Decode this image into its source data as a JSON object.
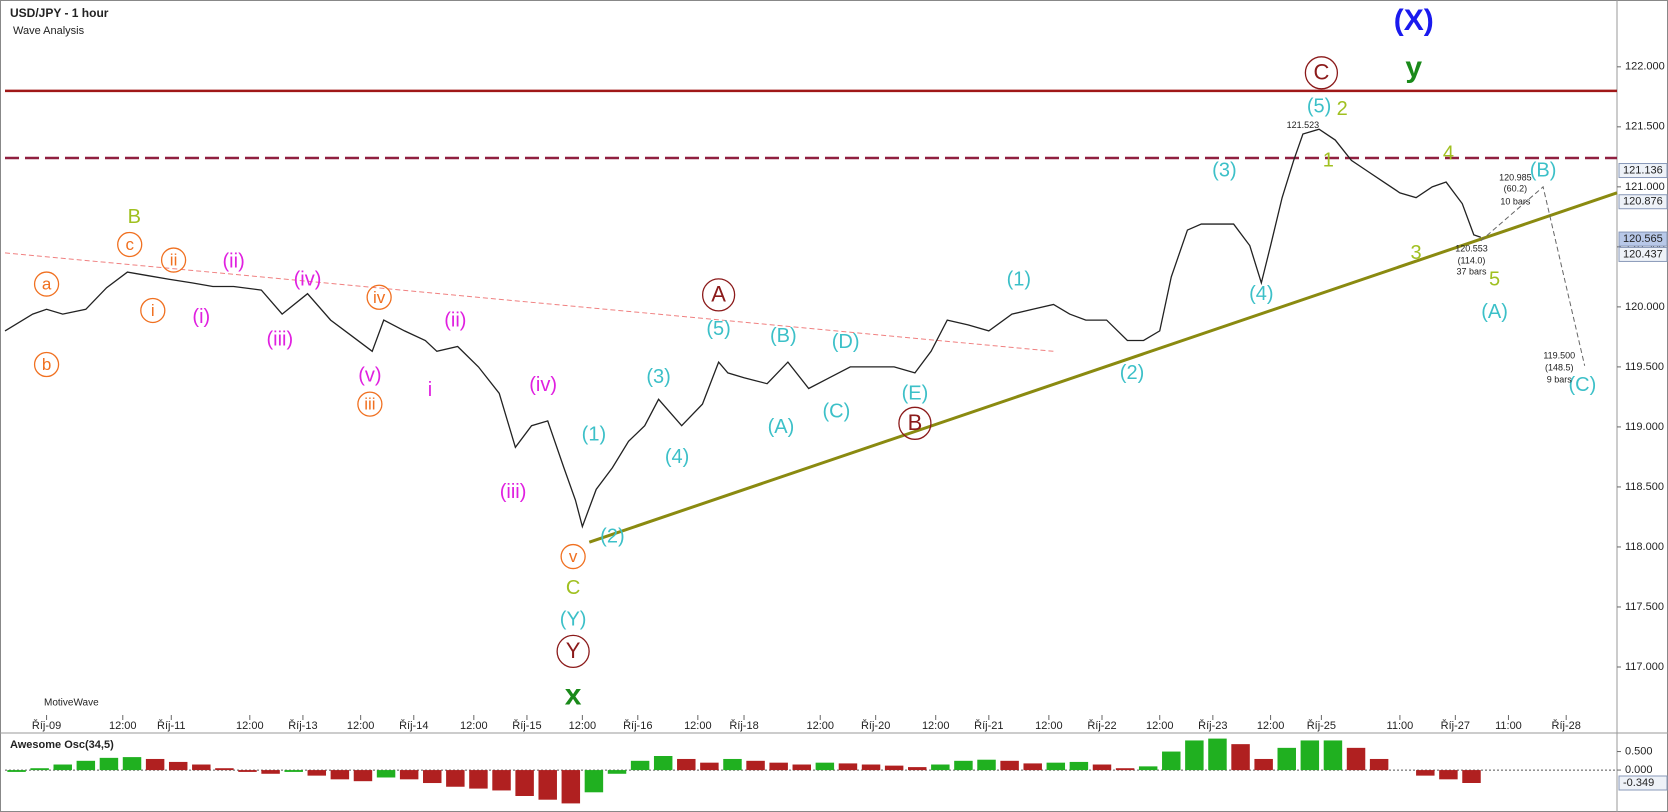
{
  "chart_data": [
    {
      "type": "line",
      "title": "USD/JPY - 1 hour",
      "subtitle": "Wave Analysis",
      "footer": "MotiveWave",
      "xlim": [
        0,
        698
      ],
      "ylim": [
        116.6,
        122.54
      ],
      "xticks": [
        {
          "value": 18,
          "label": "Říj-09"
        },
        {
          "value": 51,
          "label": "12:00"
        },
        {
          "value": 72,
          "label": "Říj-11"
        },
        {
          "value": 106,
          "label": "12:00"
        },
        {
          "value": 129,
          "label": "Říj-13"
        },
        {
          "value": 154,
          "label": "12:00"
        },
        {
          "value": 177,
          "label": "Říj-14"
        },
        {
          "value": 203,
          "label": "12:00"
        },
        {
          "value": 226,
          "label": "Říj-15"
        },
        {
          "value": 250,
          "label": "12:00"
        },
        {
          "value": 274,
          "label": "Říj-16"
        },
        {
          "value": 300,
          "label": "12:00"
        },
        {
          "value": 320,
          "label": "Říj-18"
        },
        {
          "value": 353,
          "label": "12:00"
        },
        {
          "value": 377,
          "label": "Říj-20"
        },
        {
          "value": 403,
          "label": "12:00"
        },
        {
          "value": 426,
          "label": "Říj-21"
        },
        {
          "value": 452,
          "label": "12:00"
        },
        {
          "value": 475,
          "label": "Říj-22"
        },
        {
          "value": 500,
          "label": "12:00"
        },
        {
          "value": 523,
          "label": "Říj-23"
        },
        {
          "value": 548,
          "label": "12:00"
        },
        {
          "value": 570,
          "label": "Říj-25"
        },
        {
          "value": 604,
          "label": "11:00"
        },
        {
          "value": 628,
          "label": "Říj-27"
        },
        {
          "value": 651,
          "label": "11:00"
        },
        {
          "value": 676,
          "label": "Říj-28"
        }
      ],
      "yticks": [
        {
          "value": 117,
          "label": "117.000"
        },
        {
          "value": 117.5,
          "label": "117.500"
        },
        {
          "value": 118,
          "label": "118.000"
        },
        {
          "value": 118.5,
          "label": "118.500"
        },
        {
          "value": 119,
          "label": "119.000"
        },
        {
          "value": 119.5,
          "label": "119.500"
        },
        {
          "value": 120,
          "label": "120.000"
        },
        {
          "value": 120.5,
          "label": "120.500"
        },
        {
          "value": 121,
          "label": "121.000"
        },
        {
          "value": 121.5,
          "label": "121.500"
        },
        {
          "value": 122,
          "label": "122.000"
        }
      ],
      "price_tags": [
        121.136,
        120.876,
        120.565,
        120.437
      ],
      "series": [
        {
          "name": "USD/JPY",
          "color": "#222222",
          "x": [
            0,
            12,
            18,
            25,
            35,
            44,
            53,
            62,
            71,
            81,
            90,
            99,
            111,
            120,
            131,
            141,
            150,
            159,
            164,
            173,
            182,
            187,
            196,
            205,
            214,
            221,
            228,
            235,
            242,
            247,
            250,
            256,
            263,
            270,
            277,
            283,
            293,
            302,
            309,
            313,
            320,
            330,
            339,
            348,
            357,
            366,
            376,
            385,
            394,
            401,
            408,
            417,
            426,
            436,
            445,
            454,
            461,
            468,
            477,
            486,
            493,
            500,
            505,
            512,
            518,
            525,
            532,
            539,
            544,
            548,
            553,
            558,
            562,
            569,
            576,
            583,
            590,
            597,
            604,
            611,
            618,
            624,
            631,
            636,
            639
          ],
          "values": [
            119.8,
            119.94,
            119.98,
            119.94,
            119.98,
            120.16,
            120.29,
            120.26,
            120.23,
            120.2,
            120.17,
            120.17,
            120.14,
            119.94,
            120.11,
            119.89,
            119.76,
            119.63,
            119.89,
            119.8,
            119.72,
            119.63,
            119.67,
            119.5,
            119.28,
            118.83,
            119.01,
            119.05,
            118.66,
            118.39,
            118.17,
            118.48,
            118.66,
            118.88,
            119.01,
            119.23,
            119.01,
            119.19,
            119.54,
            119.45,
            119.41,
            119.36,
            119.54,
            119.32,
            119.41,
            119.5,
            119.5,
            119.5,
            119.45,
            119.63,
            119.89,
            119.85,
            119.8,
            119.94,
            119.98,
            120.02,
            119.94,
            119.89,
            119.89,
            119.72,
            119.72,
            119.8,
            120.25,
            120.64,
            120.69,
            120.69,
            120.69,
            120.51,
            120.2,
            120.51,
            120.91,
            121.22,
            121.44,
            121.48,
            121.39,
            121.22,
            121.13,
            121.04,
            120.95,
            120.91,
            121.0,
            121.04,
            120.86,
            120.6,
            120.58
          ]
        }
      ],
      "levels": [
        {
          "value": 121.8,
          "color": "#a01818",
          "dashed": false
        },
        {
          "value": 121.24,
          "color": "#902040",
          "dashed": true
        }
      ],
      "trendlines": [
        {
          "x": [
            253,
            698
          ],
          "y": [
            118.04,
            120.95
          ],
          "color": "#8a8a10",
          "dashed": false
        },
        {
          "x": [
            0,
            454
          ],
          "y": [
            120.45,
            119.63
          ],
          "color": "#f08080",
          "dashed": true
        },
        {
          "x": [
            639,
            666,
            684
          ],
          "y": [
            120.55,
            121.0,
            119.51
          ],
          "color": "#666666",
          "dashed": true
        }
      ],
      "annotations": [
        {
          "text": "(X)",
          "x": 610,
          "y": 122.38,
          "color": "#1a1aee",
          "style": "big"
        },
        {
          "text": "y",
          "x": 610,
          "y": 121.99,
          "color": "#1a8a1a",
          "style": "big"
        },
        {
          "text": "C",
          "x": 570,
          "y": 121.95,
          "color": "#8b1a1a",
          "style": "circled"
        },
        {
          "text": "(5)",
          "x": 569,
          "y": 121.67,
          "color": "#3cc0c8",
          "style": "plain"
        },
        {
          "text": "2",
          "x": 579,
          "y": 121.65,
          "color": "#a0c020",
          "style": "plain"
        },
        {
          "text": "1",
          "x": 573,
          "y": 121.22,
          "color": "#a0c020",
          "style": "plain"
        },
        {
          "text": "(3)",
          "x": 528,
          "y": 121.14,
          "color": "#3cc0c8",
          "style": "plain"
        },
        {
          "text": "4",
          "x": 625,
          "y": 121.28,
          "color": "#a0c020",
          "style": "plain"
        },
        {
          "text": "(B)",
          "x": 666,
          "y": 121.14,
          "color": "#3cc0c8",
          "style": "plain"
        },
        {
          "text": "3",
          "x": 611,
          "y": 120.45,
          "color": "#a0c020",
          "style": "plain"
        },
        {
          "text": "(4)",
          "x": 544,
          "y": 120.11,
          "color": "#3cc0c8",
          "style": "plain"
        },
        {
          "text": "5",
          "x": 645,
          "y": 120.23,
          "color": "#a0c020",
          "style": "plain"
        },
        {
          "text": "(A)",
          "x": 645,
          "y": 119.96,
          "color": "#3cc0c8",
          "style": "plain"
        },
        {
          "text": "(C)",
          "x": 683,
          "y": 119.35,
          "color": "#3cc0c8",
          "style": "plain"
        },
        {
          "text": "(1)",
          "x": 439,
          "y": 120.23,
          "color": "#3cc0c8",
          "style": "plain"
        },
        {
          "text": "(2)",
          "x": 488,
          "y": 119.45,
          "color": "#3cc0c8",
          "style": "plain"
        },
        {
          "text": "A",
          "x": 309,
          "y": 120.1,
          "color": "#8b1a1a",
          "style": "circled"
        },
        {
          "text": "(5)",
          "x": 309,
          "y": 119.82,
          "color": "#3cc0c8",
          "style": "plain"
        },
        {
          "text": "(B)",
          "x": 337,
          "y": 119.76,
          "color": "#3cc0c8",
          "style": "plain"
        },
        {
          "text": "(D)",
          "x": 364,
          "y": 119.71,
          "color": "#3cc0c8",
          "style": "plain"
        },
        {
          "text": "(E)",
          "x": 394,
          "y": 119.28,
          "color": "#3cc0c8",
          "style": "plain"
        },
        {
          "text": "B",
          "x": 394,
          "y": 119.03,
          "color": "#8b1a1a",
          "style": "circled"
        },
        {
          "text": "(A)",
          "x": 336,
          "y": 119.0,
          "color": "#3cc0c8",
          "style": "plain"
        },
        {
          "text": "(C)",
          "x": 360,
          "y": 119.13,
          "color": "#3cc0c8",
          "style": "plain"
        },
        {
          "text": "(3)",
          "x": 283,
          "y": 119.42,
          "color": "#3cc0c8",
          "style": "plain"
        },
        {
          "text": "(4)",
          "x": 291,
          "y": 118.75,
          "color": "#3cc0c8",
          "style": "plain"
        },
        {
          "text": "(1)",
          "x": 255,
          "y": 118.94,
          "color": "#3cc0c8",
          "style": "plain"
        },
        {
          "text": "(2)",
          "x": 263,
          "y": 118.09,
          "color": "#3cc0c8",
          "style": "plain"
        },
        {
          "text": "v",
          "x": 246,
          "y": 117.92,
          "color": "#f07020",
          "style": "ring"
        },
        {
          "text": "C",
          "x": 246,
          "y": 117.66,
          "color": "#a0c020",
          "style": "plain"
        },
        {
          "text": "(Y)",
          "x": 246,
          "y": 117.4,
          "color": "#3cc0c8",
          "style": "plain"
        },
        {
          "text": "Y",
          "x": 246,
          "y": 117.13,
          "color": "#8b1a1a",
          "style": "circled"
        },
        {
          "text": "x",
          "x": 246,
          "y": 116.76,
          "color": "#1a8a1a",
          "style": "big"
        },
        {
          "text": "(iv)",
          "x": 233,
          "y": 119.35,
          "color": "#e020e0",
          "style": "plain"
        },
        {
          "text": "(iii)",
          "x": 220,
          "y": 118.46,
          "color": "#e020e0",
          "style": "plain"
        },
        {
          "text": "i",
          "x": 184,
          "y": 119.31,
          "color": "#e020e0",
          "style": "plain"
        },
        {
          "text": "(ii)",
          "x": 195,
          "y": 119.89,
          "color": "#e020e0",
          "style": "plain"
        },
        {
          "text": "(v)",
          "x": 158,
          "y": 119.43,
          "color": "#e020e0",
          "style": "plain"
        },
        {
          "text": "iii",
          "x": 158,
          "y": 119.19,
          "color": "#f07020",
          "style": "ring"
        },
        {
          "text": "iv",
          "x": 162,
          "y": 120.08,
          "color": "#f07020",
          "style": "ring"
        },
        {
          "text": "(iv)",
          "x": 131,
          "y": 120.23,
          "color": "#e020e0",
          "style": "plain"
        },
        {
          "text": "(iii)",
          "x": 119,
          "y": 119.73,
          "color": "#e020e0",
          "style": "plain"
        },
        {
          "text": "(ii)",
          "x": 99,
          "y": 120.38,
          "color": "#e020e0",
          "style": "plain"
        },
        {
          "text": "(i)",
          "x": 85,
          "y": 119.92,
          "color": "#e020e0",
          "style": "plain"
        },
        {
          "text": "ii",
          "x": 73,
          "y": 120.39,
          "color": "#f07020",
          "style": "ring"
        },
        {
          "text": "i",
          "x": 64,
          "y": 119.97,
          "color": "#f07020",
          "style": "ring"
        },
        {
          "text": "c",
          "x": 54,
          "y": 120.52,
          "color": "#f07020",
          "style": "ring"
        },
        {
          "text": "B",
          "x": 56,
          "y": 120.75,
          "color": "#a0c020",
          "style": "plain"
        },
        {
          "text": "a",
          "x": 18,
          "y": 120.19,
          "color": "#f07020",
          "style": "ring"
        },
        {
          "text": "b",
          "x": 18,
          "y": 119.52,
          "color": "#f07020",
          "style": "ring"
        },
        {
          "text": "121.523",
          "x": 562,
          "y": 121.52,
          "color": "#222222",
          "style": "small"
        },
        {
          "text": "120.985",
          "x": 654,
          "y": 121.08,
          "color": "#222222",
          "style": "small"
        },
        {
          "text": "(60.2)",
          "x": 654,
          "y": 120.99,
          "color": "#222222",
          "style": "small"
        },
        {
          "text": "10 bars",
          "x": 654,
          "y": 120.88,
          "color": "#222222",
          "style": "small"
        },
        {
          "text": "120.553",
          "x": 635,
          "y": 120.49,
          "color": "#222222",
          "style": "small"
        },
        {
          "text": "(114.0)",
          "x": 635,
          "y": 120.39,
          "color": "#222222",
          "style": "small"
        },
        {
          "text": "37 bars",
          "x": 635,
          "y": 120.3,
          "color": "#222222",
          "style": "small"
        },
        {
          "text": "119.500",
          "x": 673,
          "y": 119.6,
          "color": "#222222",
          "style": "small"
        },
        {
          "text": "(148.5)",
          "x": 673,
          "y": 119.5,
          "color": "#222222",
          "style": "small"
        },
        {
          "text": "9 bars",
          "x": 673,
          "y": 119.4,
          "color": "#222222",
          "style": "small"
        }
      ]
    },
    {
      "type": "bar",
      "title": "Awesome Osc(34,5)",
      "xlim": [
        0,
        698
      ],
      "ylim": [
        -0.97,
        0.92
      ],
      "yticks": [
        {
          "value": 0.5,
          "label": "0.500"
        },
        {
          "value": 0,
          "label": "0.000"
        }
      ],
      "current": {
        "value": -0.349,
        "label": "-0.349"
      },
      "colors": {
        "up": "#20b020",
        "down": "#b02020"
      },
      "x": [
        5,
        15,
        25,
        35,
        45,
        55,
        65,
        75,
        85,
        95,
        105,
        115,
        125,
        135,
        145,
        155,
        165,
        175,
        185,
        195,
        205,
        215,
        225,
        235,
        245,
        255,
        265,
        275,
        285,
        295,
        305,
        315,
        325,
        335,
        345,
        355,
        365,
        375,
        385,
        395,
        405,
        415,
        425,
        435,
        445,
        455,
        465,
        475,
        485,
        495,
        505,
        515,
        525,
        535,
        545,
        555,
        565,
        575,
        585,
        595,
        605,
        615,
        625,
        635
      ],
      "values": [
        -0.05,
        0.05,
        0.15,
        0.25,
        0.33,
        0.35,
        0.3,
        0.22,
        0.15,
        0.05,
        -0.05,
        -0.1,
        -0.05,
        -0.15,
        -0.25,
        -0.3,
        -0.2,
        -0.25,
        -0.35,
        -0.45,
        -0.5,
        -0.55,
        -0.7,
        -0.8,
        -0.9,
        -0.6,
        -0.1,
        0.25,
        0.38,
        0.3,
        0.2,
        0.3,
        0.25,
        0.2,
        0.15,
        0.2,
        0.18,
        0.15,
        0.12,
        0.08,
        0.15,
        0.25,
        0.28,
        0.25,
        0.18,
        0.2,
        0.22,
        0.15,
        0.05,
        0.1,
        0.5,
        0.8,
        0.85,
        0.7,
        0.3,
        0.6,
        0.8,
        0.8,
        0.6,
        0.3,
        0,
        -0.15,
        -0.25,
        -0.349
      ]
    }
  ]
}
